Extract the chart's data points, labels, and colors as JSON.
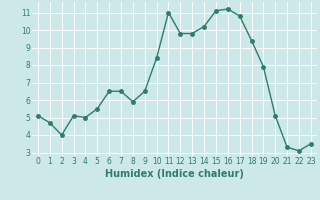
{
  "x": [
    0,
    1,
    2,
    3,
    4,
    5,
    6,
    7,
    8,
    9,
    10,
    11,
    12,
    13,
    14,
    15,
    16,
    17,
    18,
    19,
    20,
    21,
    22,
    23
  ],
  "y": [
    5.1,
    4.7,
    4.0,
    5.1,
    5.0,
    5.5,
    6.5,
    6.5,
    5.9,
    6.5,
    8.4,
    11.0,
    9.8,
    9.8,
    10.2,
    11.1,
    11.2,
    10.8,
    9.4,
    7.9,
    5.1,
    3.3,
    3.1,
    3.5
  ],
  "xlabel": "Humidex (Indice chaleur)",
  "line_color": "#2e7d6e",
  "marker_color": "#2e7d6e",
  "bg_color": "#cce8e8",
  "grid_color": "#ffffff",
  "xlim": [
    -0.5,
    23.5
  ],
  "ylim": [
    2.8,
    11.6
  ],
  "yticks": [
    3,
    4,
    5,
    6,
    7,
    8,
    9,
    10,
    11
  ],
  "xticks": [
    0,
    1,
    2,
    3,
    4,
    5,
    6,
    7,
    8,
    9,
    10,
    11,
    12,
    13,
    14,
    15,
    16,
    17,
    18,
    19,
    20,
    21,
    22,
    23
  ],
  "tick_fontsize": 5.5,
  "xlabel_fontsize": 7.0,
  "linewidth": 1.0,
  "markersize": 2.5
}
